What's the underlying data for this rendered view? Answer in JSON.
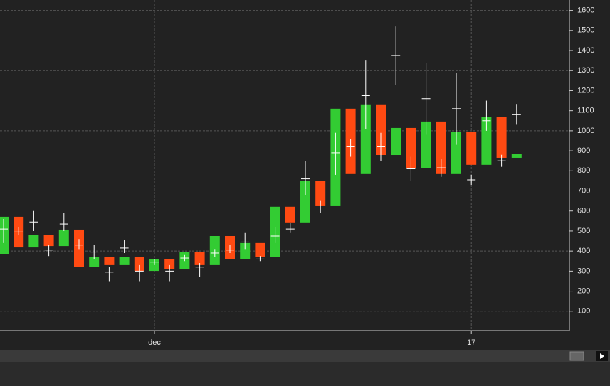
{
  "chart_data": {
    "type": "candlestick",
    "categories": [
      null,
      null,
      null,
      null,
      null,
      null,
      null,
      null,
      null,
      null,
      "dec",
      null,
      null,
      null,
      null,
      null,
      null,
      null,
      null,
      null,
      null,
      null,
      null,
      null,
      null,
      null,
      null,
      null,
      null,
      null,
      null,
      "17",
      null,
      null,
      null
    ],
    "open": [
      386,
      571,
      418,
      482,
      425,
      507,
      319,
      369,
      330,
      369,
      301,
      358,
      309,
      394,
      330,
      475,
      358,
      440,
      369,
      621,
      543,
      748,
      624,
      1110,
      784,
      1128,
      879,
      1014,
      812,
      1046,
      784,
      993,
      830,
      1067,
      865
    ],
    "close": [
      571,
      418,
      482,
      425,
      507,
      319,
      369,
      330,
      369,
      301,
      358,
      309,
      394,
      330,
      475,
      358,
      440,
      369,
      621,
      543,
      748,
      624,
      1110,
      784,
      1128,
      879,
      1014,
      812,
      1046,
      784,
      993,
      830,
      1067,
      865,
      883
    ],
    "up_color": "#33cc33",
    "down_color": "#ff4a12",
    "markers": {
      "color": "#ffffff",
      "values": [
        510,
        495,
        545,
        405,
        535,
        430,
        395,
        295,
        415,
        300,
        345,
        300,
        365,
        320,
        390,
        405,
        445,
        360,
        475,
        510,
        760,
        615,
        890,
        920,
        1175,
        920,
        1375,
        810,
        1160,
        815,
        1110,
        755,
        1050,
        850,
        1080
      ],
      "low": [
        440,
        480,
        500,
        375,
        500,
        410,
        360,
        250,
        390,
        250,
        330,
        250,
        350,
        270,
        370,
        390,
        410,
        350,
        440,
        490,
        680,
        590,
        780,
        870,
        1010,
        850,
        1230,
        750,
        980,
        770,
        930,
        730,
        1000,
        820,
        1030
      ],
      "high": [
        560,
        520,
        600,
        430,
        590,
        460,
        430,
        320,
        455,
        330,
        360,
        330,
        380,
        340,
        410,
        430,
        490,
        375,
        520,
        540,
        850,
        650,
        990,
        960,
        1350,
        990,
        1520,
        870,
        1340,
        860,
        1290,
        780,
        1150,
        880,
        1130
      ]
    },
    "ylim": [
      0,
      1650
    ],
    "yticks": [
      100,
      200,
      300,
      400,
      500,
      600,
      700,
      800,
      900,
      1000,
      1100,
      1200,
      1300,
      1400,
      1500,
      1600
    ],
    "ygrid": [
      100,
      400,
      700,
      1000,
      1300,
      1600
    ]
  }
}
